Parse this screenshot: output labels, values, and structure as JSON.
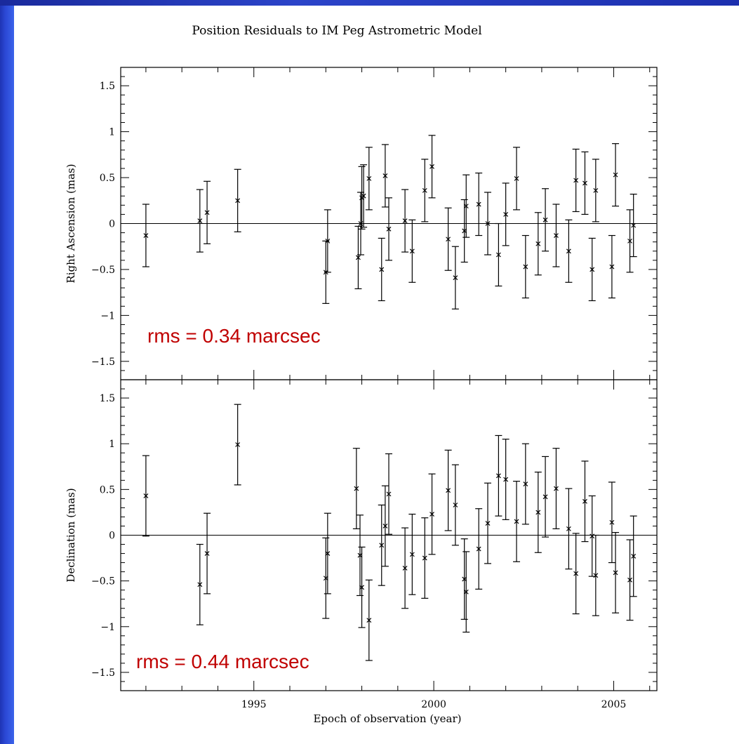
{
  "colors": {
    "annotation": "#c00000",
    "frame_left": "#2c49d6",
    "marks": "#000000"
  },
  "chart_data": {
    "type": "scatter",
    "title": "Position Residuals to IM Peg Astrometric Model",
    "xlabel": "Epoch of observation (year)",
    "xlim": [
      1991.3,
      2006.2
    ],
    "x_ticks": [
      "1995",
      "2000",
      "2005"
    ],
    "grid": false,
    "panels": [
      {
        "ylabel": "Right Ascension (mas)",
        "ylim": [
          -1.7,
          1.7
        ],
        "y_ticks": [
          "1.5",
          "1",
          "0.5",
          "0",
          "−0.5",
          "−1",
          "−1.5"
        ],
        "y_tick_values": [
          1.5,
          1,
          0.5,
          0,
          -0.5,
          -1,
          -1.5
        ],
        "annotation": "rms = 0.34 marcsec",
        "error": 0.34,
        "points": [
          [
            1992.0,
            -0.13
          ],
          [
            1993.5,
            0.03
          ],
          [
            1993.7,
            0.12
          ],
          [
            1994.55,
            0.25
          ],
          [
            1997.0,
            -0.53
          ],
          [
            1997.05,
            -0.19
          ],
          [
            1997.9,
            -0.37
          ],
          [
            1997.97,
            0.0
          ],
          [
            1998.0,
            0.28
          ],
          [
            1998.05,
            0.3
          ],
          [
            1998.2,
            0.49
          ],
          [
            1998.55,
            -0.5
          ],
          [
            1998.65,
            0.52
          ],
          [
            1998.75,
            -0.06
          ],
          [
            1999.2,
            0.03
          ],
          [
            1999.4,
            -0.3
          ],
          [
            1999.75,
            0.36
          ],
          [
            1999.95,
            0.62
          ],
          [
            2000.4,
            -0.17
          ],
          [
            2000.6,
            -0.59
          ],
          [
            2000.85,
            -0.08
          ],
          [
            2000.9,
            0.19
          ],
          [
            2001.25,
            0.21
          ],
          [
            2001.5,
            0.0
          ],
          [
            2001.8,
            -0.34
          ],
          [
            2002.0,
            0.1
          ],
          [
            2002.3,
            0.49
          ],
          [
            2002.55,
            -0.47
          ],
          [
            2002.9,
            -0.22
          ],
          [
            2003.1,
            0.04
          ],
          [
            2003.4,
            -0.13
          ],
          [
            2003.75,
            -0.3
          ],
          [
            2003.95,
            0.47
          ],
          [
            2004.2,
            0.44
          ],
          [
            2004.4,
            -0.5
          ],
          [
            2004.5,
            0.36
          ],
          [
            2004.95,
            -0.47
          ],
          [
            2005.05,
            0.53
          ],
          [
            2005.45,
            -0.19
          ],
          [
            2005.55,
            -0.02
          ]
        ]
      },
      {
        "ylabel": "Declination (mas)",
        "ylim": [
          -1.7,
          1.7
        ],
        "y_ticks": [
          "1.5",
          "1",
          "0.5",
          "0",
          "−0.5",
          "−1",
          "−1.5"
        ],
        "y_tick_values": [
          1.5,
          1,
          0.5,
          0,
          -0.5,
          -1,
          -1.5
        ],
        "annotation": "rms = 0.44 marcsec",
        "error": 0.44,
        "points": [
          [
            1992.0,
            0.43
          ],
          [
            1993.5,
            -0.54
          ],
          [
            1993.7,
            -0.2
          ],
          [
            1994.55,
            0.99
          ],
          [
            1997.0,
            -0.47
          ],
          [
            1997.05,
            -0.2
          ],
          [
            1997.85,
            0.51
          ],
          [
            1997.95,
            -0.22
          ],
          [
            1998.0,
            -0.57
          ],
          [
            1998.2,
            -0.93
          ],
          [
            1998.55,
            -0.11
          ],
          [
            1998.65,
            0.1
          ],
          [
            1998.75,
            0.45
          ],
          [
            1999.2,
            -0.36
          ],
          [
            1999.4,
            -0.21
          ],
          [
            1999.75,
            -0.25
          ],
          [
            1999.95,
            0.23
          ],
          [
            2000.4,
            0.49
          ],
          [
            2000.6,
            0.33
          ],
          [
            2000.85,
            -0.48
          ],
          [
            2000.9,
            -0.62
          ],
          [
            2001.25,
            -0.15
          ],
          [
            2001.5,
            0.13
          ],
          [
            2001.8,
            0.65
          ],
          [
            2002.0,
            0.61
          ],
          [
            2002.3,
            0.15
          ],
          [
            2002.55,
            0.56
          ],
          [
            2002.9,
            0.25
          ],
          [
            2003.1,
            0.42
          ],
          [
            2003.4,
            0.51
          ],
          [
            2003.75,
            0.07
          ],
          [
            2003.95,
            -0.42
          ],
          [
            2004.2,
            0.37
          ],
          [
            2004.4,
            -0.01
          ],
          [
            2004.5,
            -0.44
          ],
          [
            2004.95,
            0.14
          ],
          [
            2005.05,
            -0.41
          ],
          [
            2005.45,
            -0.49
          ],
          [
            2005.55,
            -0.23
          ]
        ]
      }
    ]
  }
}
